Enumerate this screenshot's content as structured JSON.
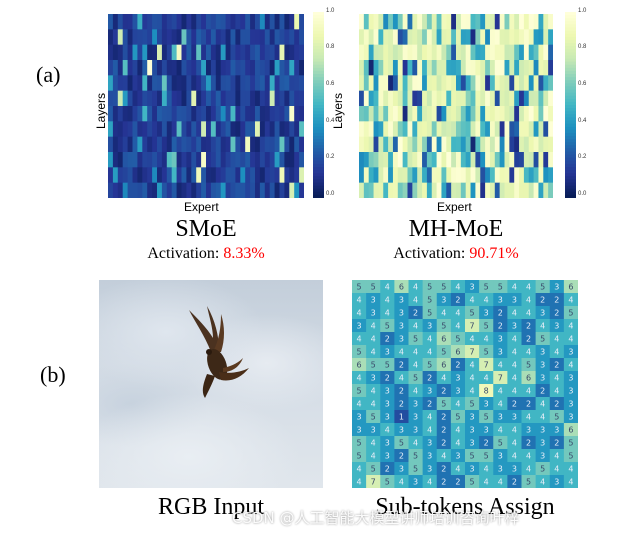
{
  "panels": {
    "a": {
      "label": "(a)"
    },
    "b": {
      "label": "(b)"
    }
  },
  "colors": {
    "activation_pct": "#ff0000",
    "colormap": [
      "#081d58",
      "#253494",
      "#225ea8",
      "#1d91c0",
      "#41b6c4",
      "#7fcdbb",
      "#c7e9b4",
      "#edf8b1",
      "#ffffd9"
    ]
  },
  "heatmaps": {
    "ylabel": "Layers",
    "xlabel": "Expert",
    "colorbar_ticks": [
      "1.0",
      "0.8",
      "0.6",
      "0.4",
      "0.2",
      "0.0"
    ],
    "smoe": {
      "caption": "SMoE",
      "activation_label": "Activation:",
      "activation_value": "8.33%"
    },
    "mhmoe": {
      "caption": "MH-MoE",
      "activation_label": "Activation:",
      "activation_value": "90.71%"
    }
  },
  "images": {
    "rgb_caption": "RGB Input",
    "subtoken_caption": "Sub-tokens Assign",
    "subtoken_grid": [
      [
        5,
        5,
        4,
        6,
        4,
        5,
        5,
        4,
        3,
        5,
        5,
        4,
        4,
        5,
        3,
        6
      ],
      [
        4,
        3,
        4,
        3,
        4,
        5,
        3,
        2,
        4,
        4,
        3,
        3,
        4,
        2,
        2,
        4
      ],
      [
        4,
        3,
        4,
        3,
        2,
        5,
        4,
        4,
        5,
        3,
        2,
        4,
        4,
        3,
        2,
        5
      ],
      [
        3,
        4,
        5,
        3,
        4,
        3,
        5,
        4,
        7,
        5,
        2,
        3,
        2,
        4,
        3,
        4
      ],
      [
        4,
        4,
        2,
        3,
        5,
        4,
        6,
        5,
        4,
        4,
        3,
        4,
        2,
        5,
        4,
        4
      ],
      [
        5,
        4,
        3,
        4,
        4,
        4,
        5,
        6,
        7,
        5,
        3,
        4,
        4,
        3,
        4,
        3
      ],
      [
        6,
        5,
        5,
        2,
        4,
        5,
        6,
        2,
        4,
        7,
        4,
        4,
        5,
        3,
        2,
        4
      ],
      [
        4,
        3,
        2,
        4,
        5,
        2,
        4,
        3,
        4,
        4,
        7,
        4,
        6,
        3,
        4,
        3
      ],
      [
        5,
        4,
        3,
        2,
        4,
        3,
        2,
        3,
        4,
        8,
        4,
        4,
        4,
        2,
        4,
        3
      ],
      [
        4,
        4,
        3,
        2,
        3,
        2,
        5,
        4,
        5,
        3,
        4,
        2,
        2,
        4,
        2,
        3
      ],
      [
        3,
        5,
        3,
        1,
        3,
        4,
        2,
        5,
        3,
        5,
        3,
        3,
        4,
        4,
        5,
        3
      ],
      [
        3,
        3,
        4,
        3,
        3,
        4,
        2,
        4,
        3,
        3,
        4,
        4,
        3,
        3,
        3,
        6
      ],
      [
        5,
        4,
        3,
        5,
        4,
        3,
        2,
        4,
        3,
        2,
        5,
        4,
        2,
        3,
        2,
        5
      ],
      [
        5,
        4,
        3,
        2,
        5,
        3,
        4,
        3,
        5,
        5,
        3,
        4,
        4,
        3,
        4,
        5
      ],
      [
        4,
        5,
        2,
        3,
        5,
        3,
        2,
        4,
        3,
        4,
        3,
        3,
        4,
        5,
        4,
        4
      ],
      [
        4,
        7,
        5,
        4,
        3,
        4,
        2,
        2,
        5,
        4,
        4,
        2,
        5,
        4,
        3,
        4
      ]
    ]
  },
  "watermark": "CSDN @人工智能大模型讲师培训咨询叶梓"
}
